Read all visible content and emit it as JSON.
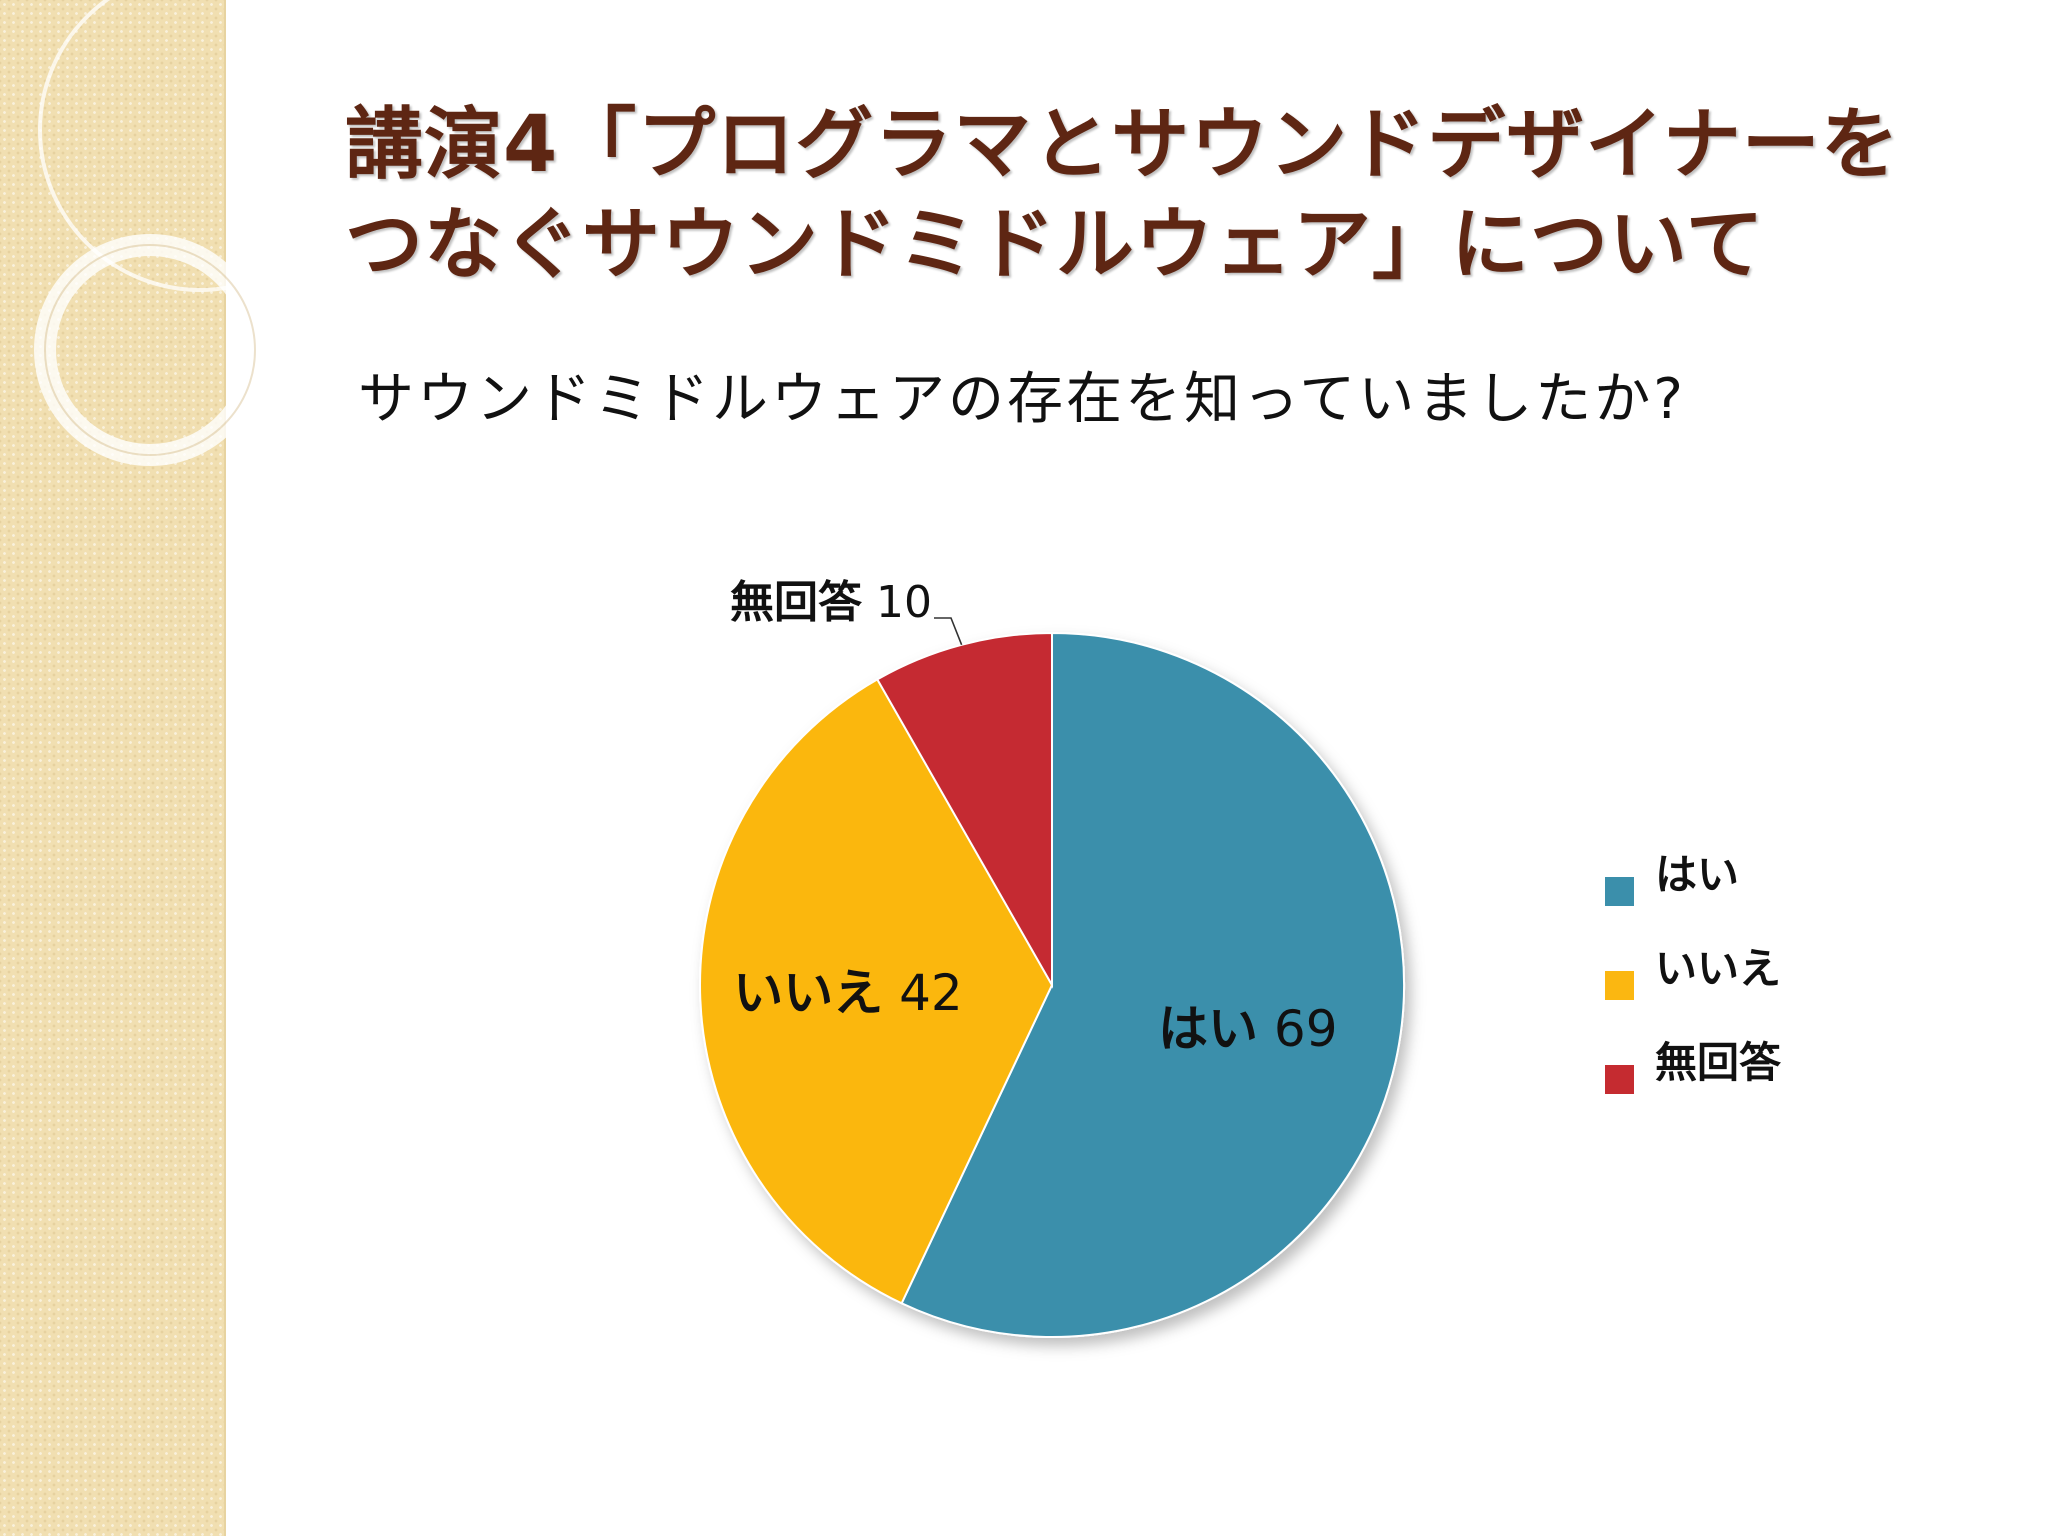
{
  "slide": {
    "title_lines": [
      "講演4「プログラマとサウンドデザイナーを",
      "つなぐサウンドミドルウェア」について"
    ],
    "question": "サウンドミドルウェアの存在を知っていましたか?"
  },
  "chart_data": {
    "type": "pie",
    "title": "",
    "slices": [
      {
        "label": "はい",
        "value": 69,
        "color": "#3b8fab"
      },
      {
        "label": "いいえ",
        "value": 42,
        "color": "#fbb711"
      },
      {
        "label": "無回答",
        "value": 10,
        "color": "#c52b30"
      }
    ],
    "data_labels": true,
    "legend_position": "right",
    "legend": [
      "はい",
      "いいえ",
      "無回答"
    ]
  }
}
